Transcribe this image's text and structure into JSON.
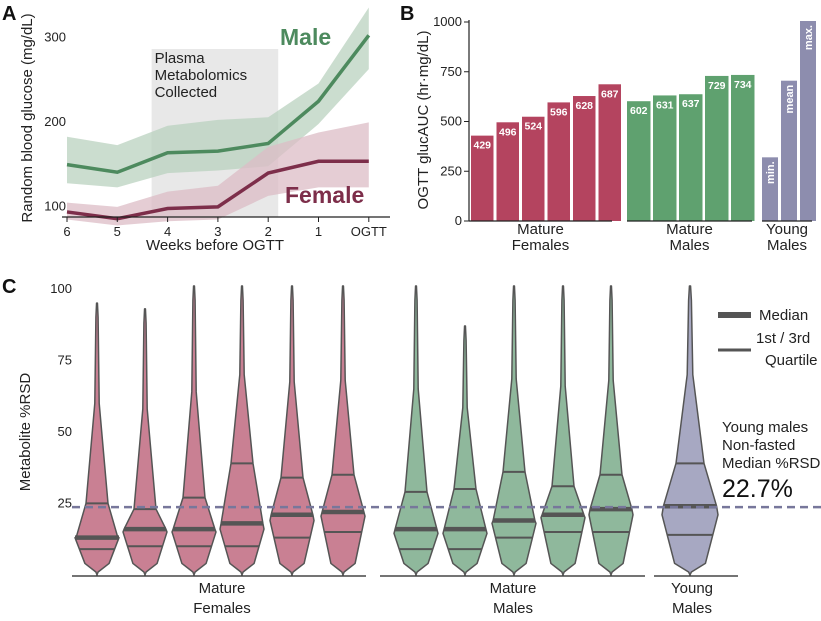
{
  "colors": {
    "male": "#4d8a5e",
    "male_band": "#b9d2bf",
    "female": "#7d2e4a",
    "female_band": "#dcbcc6",
    "shade": "#e8e8e8",
    "bar_female": "#b4445f",
    "bar_male": "#5fa16f",
    "bar_young": "#8d8dae",
    "violin_female": "#c98093",
    "violin_male": "#8fb89c",
    "violin_young": "#a7a8c2",
    "violin_stroke": "#555555",
    "dashed": "#77779b"
  },
  "panels": {
    "a": "A",
    "b": "B",
    "c": "C"
  },
  "chart_data": [
    {
      "type": "line",
      "panel": "A",
      "xlabel": "Weeks before OGTT",
      "ylabel": "Random blood glucose (mg/dL)",
      "x_ticks": [
        "6",
        "5",
        "4",
        "3",
        "2",
        "1",
        "OGTT"
      ],
      "y_ticks": [
        100,
        200,
        300
      ],
      "ylim": [
        85,
        330
      ],
      "shaded_region": {
        "x_range": [
          "4",
          "2"
        ],
        "label_lines": [
          "Plasma",
          "Metabolomics",
          "Collected"
        ]
      },
      "series": [
        {
          "name": "Male",
          "values": [
            147,
            138,
            161,
            163,
            172,
            222,
            300
          ],
          "upper": [
            180,
            170,
            193,
            200,
            203,
            243,
            333
          ],
          "lower": [
            125,
            120,
            137,
            140,
            145,
            195,
            260
          ]
        },
        {
          "name": "Female",
          "values": [
            91,
            83,
            95,
            97,
            137,
            151,
            151
          ],
          "upper": [
            102,
            97,
            115,
            122,
            168,
            185,
            197
          ],
          "lower": [
            82,
            75,
            80,
            82,
            110,
            120,
            120
          ]
        }
      ]
    },
    {
      "type": "bar",
      "panel": "B",
      "ylabel": "OGTT glucAUC (hr·mg/dL)",
      "y_ticks": [
        0,
        250,
        500,
        750,
        1000
      ],
      "ylim": [
        0,
        1000
      ],
      "groups": [
        {
          "name_lines": [
            "Mature",
            "Females"
          ],
          "bar_labels": [
            "429",
            "496",
            "524",
            "596",
            "628",
            "687"
          ],
          "values": [
            429,
            496,
            524,
            596,
            628,
            687
          ]
        },
        {
          "name_lines": [
            "Mature",
            "Males"
          ],
          "bar_labels": [
            "602",
            "631",
            "637",
            "729",
            "734"
          ],
          "values": [
            602,
            631,
            637,
            729,
            734
          ]
        },
        {
          "name_lines": [
            "Young",
            "Males"
          ],
          "bar_labels": [
            "min.",
            "mean",
            "max."
          ],
          "values": [
            320,
            705,
            1005
          ]
        }
      ]
    },
    {
      "type": "violin",
      "panel": "C",
      "ylabel": "Metabolite %RSD",
      "y_ticks": [
        25,
        50,
        75,
        100
      ],
      "ylim": [
        0,
        100
      ],
      "reference_line": {
        "value": 22.7,
        "text_lines": [
          "Young males",
          "Non-fasted",
          "Median %RSD"
        ],
        "value_label": "22.7%"
      },
      "legend": [
        {
          "label_lines": [
            "Median"
          ],
          "style": "thick"
        },
        {
          "label_lines": [
            "1st / 3rd",
            "Quartile"
          ],
          "style": "thin"
        }
      ],
      "groups": [
        {
          "name_lines": [
            "Mature",
            "Females"
          ],
          "violins": [
            {
              "max": 94,
              "q1": 8,
              "median": 12,
              "q3": 24
            },
            {
              "max": 92,
              "q1": 9,
              "median": 15,
              "q3": 22
            },
            {
              "max": 100,
              "q1": 9,
              "median": 15,
              "q3": 26
            },
            {
              "max": 100,
              "q1": 9,
              "median": 17,
              "q3": 38
            },
            {
              "max": 100,
              "q1": 12,
              "median": 20,
              "q3": 33
            },
            {
              "max": 100,
              "q1": 14,
              "median": 21,
              "q3": 34
            }
          ]
        },
        {
          "name_lines": [
            "Mature",
            "Males"
          ],
          "violins": [
            {
              "max": 100,
              "q1": 8,
              "median": 15,
              "q3": 28
            },
            {
              "max": 86,
              "q1": 8,
              "median": 15,
              "q3": 29
            },
            {
              "max": 100,
              "q1": 12,
              "median": 18,
              "q3": 35
            },
            {
              "max": 100,
              "q1": 14,
              "median": 20,
              "q3": 30
            },
            {
              "max": 100,
              "q1": 14,
              "median": 22,
              "q3": 34
            }
          ]
        },
        {
          "name_lines": [
            "Young",
            "Males"
          ],
          "violins": [
            {
              "max": 100,
              "q1": 13,
              "median": 23,
              "q3": 38
            }
          ]
        }
      ]
    }
  ]
}
